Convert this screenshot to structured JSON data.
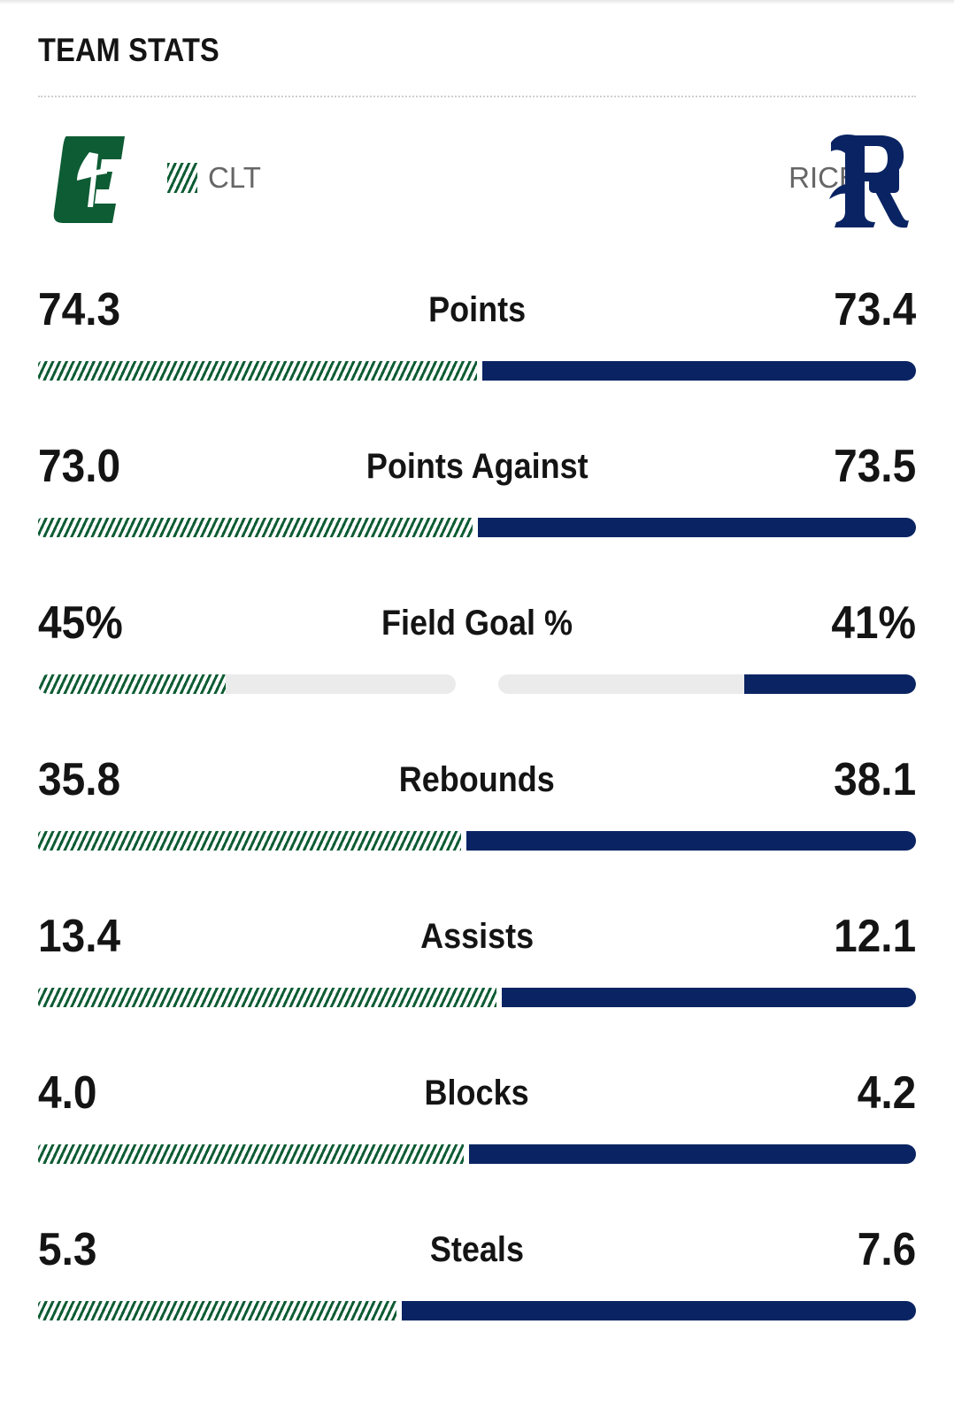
{
  "title": "TEAM STATS",
  "teams": {
    "left": {
      "abbr": "CLT",
      "color": "#0e5c34",
      "logo": "charlotte-c-logo"
    },
    "right": {
      "abbr": "RICE",
      "color": "#0a2463",
      "logo": "rice-r-logo"
    }
  },
  "stats": [
    {
      "label": "Points",
      "left": "74.3",
      "right": "73.4",
      "left_value": 74.3,
      "right_value": 73.4,
      "mode": "share"
    },
    {
      "label": "Points Against",
      "left": "73.0",
      "right": "73.5",
      "left_value": 73.0,
      "right_value": 73.5,
      "mode": "share"
    },
    {
      "label": "Field Goal %",
      "left": "45%",
      "right": "41%",
      "left_value": 45,
      "right_value": 41,
      "mode": "percent"
    },
    {
      "label": "Rebounds",
      "left": "35.8",
      "right": "38.1",
      "left_value": 35.8,
      "right_value": 38.1,
      "mode": "share"
    },
    {
      "label": "Assists",
      "left": "13.4",
      "right": "12.1",
      "left_value": 13.4,
      "right_value": 12.1,
      "mode": "share"
    },
    {
      "label": "Blocks",
      "left": "4.0",
      "right": "4.2",
      "left_value": 4.0,
      "right_value": 4.2,
      "mode": "share"
    },
    {
      "label": "Steals",
      "left": "5.3",
      "right": "7.6",
      "left_value": 5.3,
      "right_value": 7.6,
      "mode": "share"
    }
  ]
}
